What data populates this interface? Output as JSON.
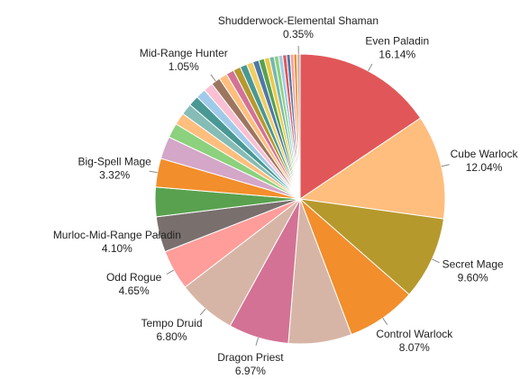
{
  "chart_data": {
    "type": "pie",
    "start_angle_deg": 0,
    "direction": "clockwise",
    "slices": [
      {
        "label": "Even Paladin",
        "value": 16.14,
        "pct_label": "16.14%",
        "color": "#e15759"
      },
      {
        "label": "Cube Warlock",
        "value": 12.04,
        "pct_label": "12.04%",
        "color": "#ffbe7d"
      },
      {
        "label": "Secret Mage",
        "value": 9.6,
        "pct_label": "9.60%",
        "color": "#b6992d"
      },
      {
        "label": "Control Warlock",
        "value": 8.07,
        "pct_label": "8.07%",
        "color": "#f28e2b"
      },
      {
        "label": "",
        "value": 7.3,
        "pct_label": "",
        "color": "#d7b5a6"
      },
      {
        "label": "Dragon Priest",
        "value": 6.97,
        "pct_label": "6.97%",
        "color": "#d37295"
      },
      {
        "label": "Tempo Druid",
        "value": 6.8,
        "pct_label": "6.80%",
        "color": "#d7b5a6"
      },
      {
        "label": "Odd Rogue",
        "value": 4.65,
        "pct_label": "4.65%",
        "color": "#ff9d9a"
      },
      {
        "label": "Murloc-Mid-Range Paladin",
        "value": 4.1,
        "pct_label": "4.10%",
        "color": "#79706e"
      },
      {
        "label": "",
        "value": 3.4,
        "pct_label": "",
        "color": "#59a14f"
      },
      {
        "label": "Big-Spell Mage",
        "value": 3.32,
        "pct_label": "3.32%",
        "color": "#f28e2b"
      },
      {
        "label": "",
        "value": 2.6,
        "pct_label": "",
        "color": "#d4a6c8"
      },
      {
        "label": "",
        "value": 1.7,
        "pct_label": "",
        "color": "#8cd17d"
      },
      {
        "label": "",
        "value": 1.4,
        "pct_label": "",
        "color": "#ffbe7d"
      },
      {
        "label": "",
        "value": 1.3,
        "pct_label": "",
        "color": "#86bcb6"
      },
      {
        "label": "",
        "value": 1.2,
        "pct_label": "",
        "color": "#499894"
      },
      {
        "label": "",
        "value": 1.15,
        "pct_label": "",
        "color": "#a0cbe8"
      },
      {
        "label": "",
        "value": 1.1,
        "pct_label": "",
        "color": "#fabfd2"
      },
      {
        "label": "Mid-Range Hunter",
        "value": 1.05,
        "pct_label": "1.05%",
        "color": "#9d7660"
      },
      {
        "label": "",
        "value": 0.95,
        "pct_label": "",
        "color": "#ffbe7d"
      },
      {
        "label": "",
        "value": 0.9,
        "pct_label": "",
        "color": "#d37295"
      },
      {
        "label": "",
        "value": 0.85,
        "pct_label": "",
        "color": "#b6992d"
      },
      {
        "label": "",
        "value": 0.8,
        "pct_label": "",
        "color": "#499894"
      },
      {
        "label": "",
        "value": 0.75,
        "pct_label": "",
        "color": "#f1ce63"
      },
      {
        "label": "",
        "value": 0.7,
        "pct_label": "",
        "color": "#4e79a7"
      },
      {
        "label": "",
        "value": 0.65,
        "pct_label": "",
        "color": "#59a14f"
      },
      {
        "label": "",
        "value": 0.6,
        "pct_label": "",
        "color": "#edc948"
      },
      {
        "label": "",
        "value": 0.55,
        "pct_label": "",
        "color": "#76b7b2"
      },
      {
        "label": "",
        "value": 0.5,
        "pct_label": "",
        "color": "#8cd17d"
      },
      {
        "label": "",
        "value": 0.48,
        "pct_label": "",
        "color": "#a0cbe8"
      },
      {
        "label": "",
        "value": 0.45,
        "pct_label": "",
        "color": "#e15759"
      },
      {
        "label": "",
        "value": 0.42,
        "pct_label": "",
        "color": "#4e79a7"
      },
      {
        "label": "",
        "value": 0.4,
        "pct_label": "",
        "color": "#ff9d9a"
      },
      {
        "label": "",
        "value": 0.38,
        "pct_label": "",
        "color": "#f28e2b"
      },
      {
        "label": "Shudderwock-Elemental Shaman",
        "value": 0.35,
        "pct_label": "0.35%",
        "color": "#bab0ac"
      }
    ]
  }
}
